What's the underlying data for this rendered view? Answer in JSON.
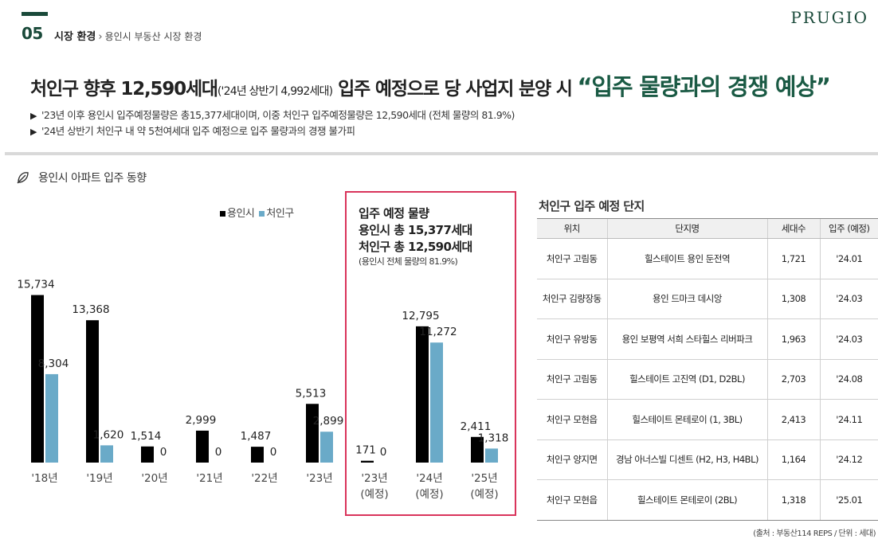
{
  "header": {
    "section_number": "05",
    "breadcrumb_main": "시장 환경",
    "breadcrumb_sep": "›",
    "breadcrumb_sub": "용인시 부동산 시장 환경",
    "brand": "PRUGIO"
  },
  "headline": {
    "main": "처인구 향후 12,590세대",
    "paren": "('24년 상반기 4,992세대)",
    "mid": " 입주 예정으로 당 사업지 분양 시 ",
    "accent": "“입주 물량과의 경쟁 예상”"
  },
  "bullets": [
    "'23년 이후 용인시 입주예정물량은 총15,377세대이며, 이중 처인구 입주예정물량은 12,590세대 (전체 물량의 81.9%)",
    "'24년 상반기 처인구 내 약 5천여세대 입주 예정으로 입주 물량과의 경쟁 불가피"
  ],
  "section_title": "용인시 아파트 입주 동향",
  "highlight": {
    "line1": "입주 예정 물량",
    "line2": "용인시 총 15,377세대",
    "line3": "처인구 총 12,590세대",
    "note": "(용인시 전체 물량의 81.9%)"
  },
  "chart_data": {
    "type": "bar",
    "categories": [
      "'18년",
      "'19년",
      "'20년",
      "'21년",
      "'22년",
      "'23년",
      "'23년\n(예정)",
      "'24년\n(예정)",
      "'25년\n(예정)"
    ],
    "series": [
      {
        "name": "용인시",
        "color": "#000000",
        "values": [
          15734,
          13368,
          1514,
          2999,
          1487,
          5513,
          171,
          12795,
          2411
        ]
      },
      {
        "name": "처인구",
        "color": "#6aaac8",
        "values": [
          8304,
          1620,
          0,
          0,
          0,
          2899,
          0,
          11272,
          1318
        ]
      }
    ],
    "labels_1": [
      "15,734",
      "13,368",
      "1,514",
      "2,999",
      "1,487",
      "5,513",
      "171",
      "12,795",
      "2,411"
    ],
    "labels_2": [
      "8,304",
      "1,620",
      "0",
      "0",
      "0",
      "2,899",
      "0",
      "11,272",
      "1,318"
    ],
    "ylim": [
      0,
      16000
    ],
    "legend_position": "top"
  },
  "table": {
    "title": "처인구 입주 예정 단지",
    "headers": [
      "위치",
      "단지명",
      "세대수",
      "입주 (예정)"
    ],
    "rows": [
      [
        "처인구 고림동",
        "힐스테이트 용인 둔전역",
        "1,721",
        "'24.01"
      ],
      [
        "처인구 김량장동",
        "용인 드마크 데시앙",
        "1,308",
        "'24.03"
      ],
      [
        "처인구 유방동",
        "용인 보평역 서희 스타힐스 리버파크",
        "1,963",
        "'24.03"
      ],
      [
        "처인구 고림동",
        "힐스테이트 고진역 (D1, D2BL)",
        "2,703",
        "'24.08"
      ],
      [
        "처인구 모현읍",
        "힐스테이트 몬테로이 (1, 3BL)",
        "2,413",
        "'24.11"
      ],
      [
        "처인구 양지면",
        "경남 아너스빌 디센트 (H2, H3, H4BL)",
        "1,164",
        "'24.12"
      ],
      [
        "처인구 모현읍",
        "힐스테이트 몬테로이 (2BL)",
        "1,318",
        "'25.01"
      ]
    ]
  },
  "source": "(출처 : 부동산114 REPS / 단위 : 세대)",
  "colors": {
    "brand_green": "#1a4a3a",
    "accent_green": "#1a5a44",
    "highlight_border": "#d9345b",
    "series_blue": "#6aaac8"
  },
  "icons": {
    "section_icon": "leaf-icon",
    "bullet_icon": "triangle-right-icon"
  }
}
